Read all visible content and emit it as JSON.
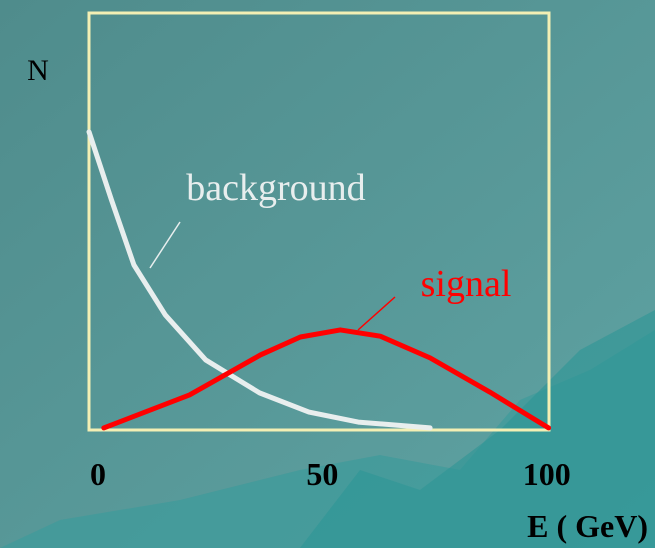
{
  "chart_data": {
    "type": "line",
    "y_label": "N",
    "x_label": "E ( GeV)",
    "xlim": [
      -2,
      100.5
    ],
    "ylim": [
      0,
      100
    ],
    "xticks": [
      0,
      50,
      100
    ],
    "frame_color": "#f3efb4",
    "series": [
      {
        "name": "background",
        "color": "#e8eeee",
        "x": [
          -2,
          3,
          8,
          15,
          24,
          36,
          47,
          58,
          74
        ],
        "values": [
          71.5,
          55.2,
          39.6,
          27.6,
          16.8,
          8.9,
          4.3,
          1.9,
          0.5
        ]
      },
      {
        "name": "signal",
        "color": "#ff0000",
        "x": [
          1.3,
          20.4,
          36.2,
          45.1,
          54,
          62.9,
          74,
          87.3,
          100.4
        ],
        "values": [
          0.5,
          8.4,
          18,
          22.3,
          24,
          22.5,
          17.3,
          9.1,
          0.5
        ]
      }
    ]
  }
}
